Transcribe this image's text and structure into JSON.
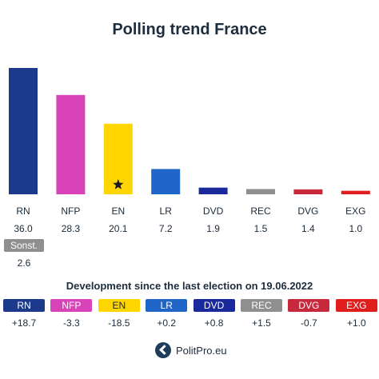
{
  "title": "Polling trend France",
  "chart_data": {
    "type": "bar",
    "title": "Polling trend France",
    "categories": [
      "RN",
      "NFP",
      "EN",
      "LR",
      "DVD",
      "REC",
      "DVG",
      "EXG"
    ],
    "values": [
      36.0,
      28.3,
      20.1,
      7.2,
      1.9,
      1.5,
      1.4,
      1.0
    ],
    "value_labels": [
      "36.0",
      "28.3",
      "20.1",
      "7.2",
      "1.9",
      "1.5",
      "1.4",
      "1.0"
    ],
    "colors": [
      "#1c3a8c",
      "#d943b9",
      "#ffd500",
      "#1f66c8",
      "#1a2a9c",
      "#8f8f8f",
      "#c8283c",
      "#e01e1e"
    ],
    "marker": {
      "category": "EN",
      "icon": "star-icon"
    },
    "ylim": [
      0,
      36.0
    ]
  },
  "others": {
    "label": "Sonst.",
    "value": "2.6"
  },
  "development": {
    "title": "Development since the last election on 19.06.2022",
    "parties": [
      "RN",
      "NFP",
      "EN",
      "LR",
      "DVD",
      "REC",
      "DVG",
      "EXG"
    ],
    "changes": [
      "+18.7",
      "-3.3",
      "-18.5",
      "+0.2",
      "+0.8",
      "+1.5",
      "-0.7",
      "+1.0"
    ],
    "text_colors": [
      "#ffffff",
      "#ffffff",
      "#1a2a3a",
      "#ffffff",
      "#ffffff",
      "#ffffff",
      "#ffffff",
      "#ffffff"
    ]
  },
  "footer": {
    "brand": "PolitPro.eu",
    "logo_icon": "politpro-logo-icon"
  }
}
